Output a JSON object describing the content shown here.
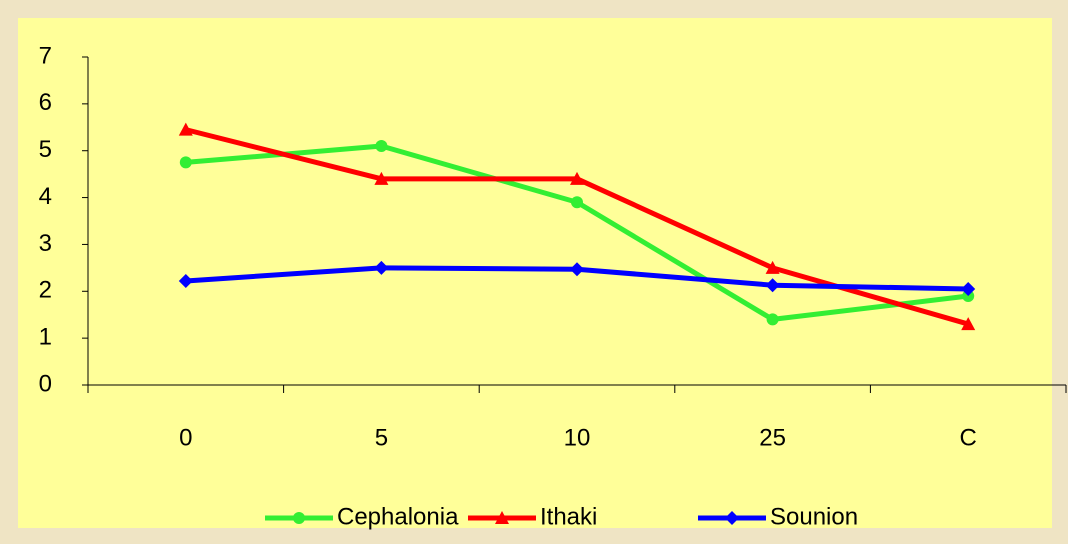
{
  "chart_data": {
    "type": "line",
    "categories": [
      "0",
      "5",
      "10",
      "25",
      "C"
    ],
    "series": [
      {
        "name": "Cephalonia",
        "color": "#33ee33",
        "marker": "circle",
        "values": [
          4.75,
          5.1,
          3.9,
          1.4,
          1.9
        ]
      },
      {
        "name": "Ithaki",
        "color": "#ff0000",
        "marker": "triangle",
        "values": [
          5.45,
          4.4,
          4.4,
          2.5,
          1.3
        ]
      },
      {
        "name": "Sounion",
        "color": "#0000ff",
        "marker": "diamond",
        "values": [
          2.22,
          2.5,
          2.47,
          2.13,
          2.05
        ]
      }
    ],
    "ylim": [
      0,
      7
    ],
    "yticks": [
      0,
      1,
      2,
      3,
      4,
      5,
      6,
      7
    ],
    "grid": false,
    "legend": "bottom"
  }
}
